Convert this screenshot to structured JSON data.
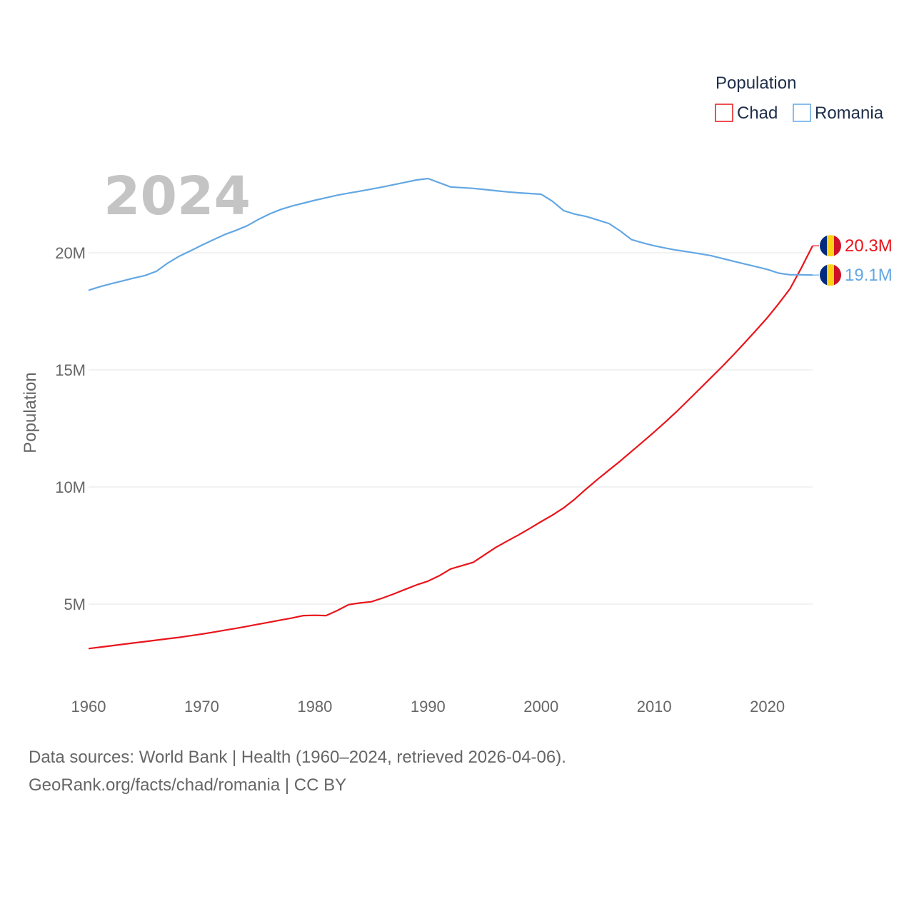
{
  "chart_data": {
    "type": "line",
    "year_label": "2024",
    "ylabel": "Population",
    "xlabel": "",
    "xlim": [
      1960,
      2024
    ],
    "ylim": [
      2000000,
      24000000
    ],
    "y_ticks": [
      5000000,
      10000000,
      15000000,
      20000000
    ],
    "y_tick_labels": [
      "5M",
      "10M",
      "15M",
      "20M"
    ],
    "x_ticks": [
      1960,
      1970,
      1980,
      1990,
      2000,
      2010,
      2020
    ],
    "x_tick_labels": [
      "1960",
      "1970",
      "1980",
      "1990",
      "2000",
      "2010",
      "2020"
    ],
    "legend": {
      "title": "Population",
      "position": "top-right"
    },
    "x": [
      1960,
      1961,
      1962,
      1963,
      1964,
      1965,
      1966,
      1967,
      1968,
      1969,
      1970,
      1971,
      1972,
      1973,
      1974,
      1975,
      1976,
      1977,
      1978,
      1979,
      1980,
      1981,
      1982,
      1983,
      1984,
      1985,
      1986,
      1987,
      1988,
      1989,
      1990,
      1991,
      1992,
      1993,
      1994,
      1995,
      1996,
      1997,
      1998,
      1999,
      2000,
      2001,
      2002,
      2003,
      2004,
      2005,
      2006,
      2007,
      2008,
      2009,
      2010,
      2011,
      2012,
      2013,
      2014,
      2015,
      2016,
      2017,
      2018,
      2019,
      2020,
      2021,
      2022,
      2023,
      2024
    ],
    "series": [
      {
        "name": "Chad",
        "color": "#e8151b",
        "end_label": "20.3M",
        "values": [
          3100000,
          3160000,
          3220000,
          3280000,
          3340000,
          3400000,
          3460000,
          3520000,
          3580000,
          3650000,
          3720000,
          3800000,
          3880000,
          3960000,
          4050000,
          4140000,
          4230000,
          4320000,
          4410000,
          4510000,
          4520000,
          4510000,
          4730000,
          4980000,
          5050000,
          5100000,
          5260000,
          5440000,
          5630000,
          5820000,
          5980000,
          6210000,
          6500000,
          6640000,
          6780000,
          7100000,
          7420000,
          7690000,
          7950000,
          8230000,
          8520000,
          8800000,
          9110000,
          9490000,
          9920000,
          10330000,
          10720000,
          11110000,
          11520000,
          11930000,
          12350000,
          12780000,
          13230000,
          13700000,
          14180000,
          14660000,
          15140000,
          15640000,
          16160000,
          16690000,
          17230000,
          17830000,
          18460000,
          19350000,
          20300000
        ]
      },
      {
        "name": "Romania",
        "color": "#63a7e3",
        "end_label": "19.1M",
        "values": [
          18400000,
          18550000,
          18680000,
          18800000,
          18920000,
          19030000,
          19210000,
          19560000,
          19850000,
          20080000,
          20320000,
          20550000,
          20770000,
          20950000,
          21150000,
          21420000,
          21660000,
          21850000,
          22000000,
          22120000,
          22240000,
          22350000,
          22460000,
          22550000,
          22630000,
          22720000,
          22810000,
          22910000,
          23010000,
          23110000,
          23170000,
          22990000,
          22810000,
          22780000,
          22750000,
          22700000,
          22650000,
          22600000,
          22560000,
          22530000,
          22500000,
          22200000,
          21800000,
          21650000,
          21550000,
          21400000,
          21250000,
          20930000,
          20560000,
          20420000,
          20300000,
          20200000,
          20110000,
          20040000,
          19960000,
          19880000,
          19760000,
          19640000,
          19520000,
          19410000,
          19290000,
          19130000,
          19060000,
          19060000,
          19050000
        ]
      }
    ]
  },
  "flag_colors": [
    "#002b7f",
    "#fcd116",
    "#ce1126"
  ],
  "footer": {
    "line1": "Data sources: World Bank | Health (1960–2024, retrieved 2026-04-06).",
    "line2": "GeoRank.org/facts/chad/romania | CC BY"
  }
}
